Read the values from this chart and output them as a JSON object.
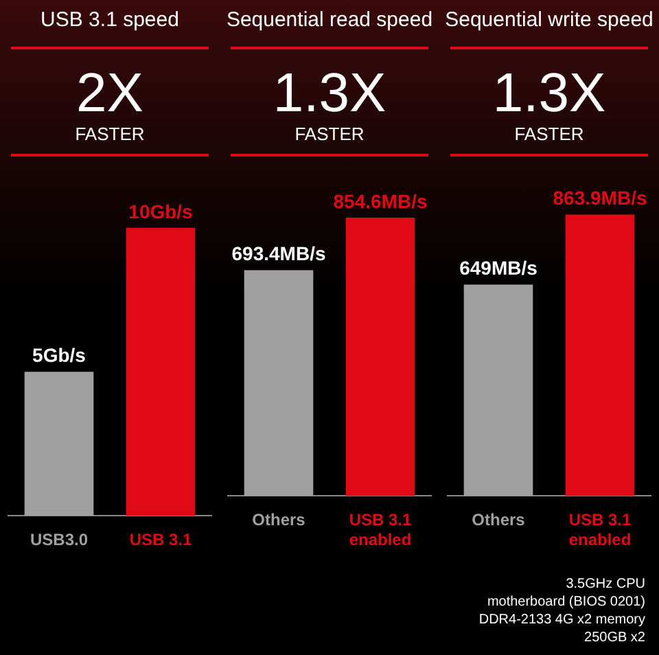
{
  "chart_data": [
    {
      "type": "bar",
      "title": "USB 3.1 speed",
      "subtitle": "2X",
      "annotations": [
        "FASTER"
      ],
      "categories": [
        "USB3.0",
        "USB 3.1"
      ],
      "values": [
        5,
        10
      ],
      "colors": [
        "#a0a0a0",
        "#e00a16"
      ],
      "value_labels": [
        "5Gb/s",
        "10Gb/s"
      ]
    },
    {
      "type": "bar",
      "title": "Sequential read speed",
      "subtitle": "1.3X",
      "annotations": [
        "FASTER"
      ],
      "categories": [
        "Others",
        "USB 3.1 enabled"
      ],
      "values": [
        693.4,
        854.6
      ],
      "colors": [
        "#a0a0a0",
        "#e00a16"
      ],
      "value_labels": [
        "693.4MB/s",
        "854.6MB/s"
      ]
    },
    {
      "type": "bar",
      "title": "Sequential write speed",
      "subtitle": "1.3X",
      "annotations": [
        "FASTER",
        "3.5GHz CPU",
        "motherboard (BIOS 0201)",
        "DDR4-2133 4G x2 memory",
        "250GB x2"
      ],
      "categories": [
        "Others",
        "USB 3.1 enabled"
      ],
      "values": [
        649,
        863.9
      ],
      "colors": [
        "#a0a0a0",
        "#e00a16"
      ],
      "value_labels": [
        "649MB/s",
        "863.9MB/s"
      ]
    }
  ]
}
